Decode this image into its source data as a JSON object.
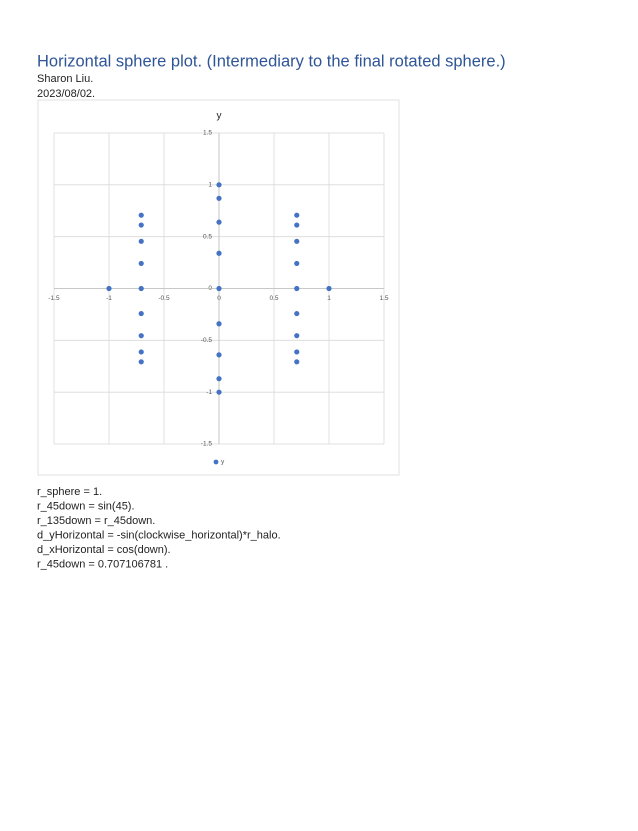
{
  "header": {
    "title": "Horizontal sphere plot. (Intermediary to the final rotated sphere.)",
    "author": "Sharon Liu.",
    "date": "2023/08/02."
  },
  "chart_data": {
    "type": "scatter",
    "y_axis_title": "y",
    "xlim": [
      -1.5,
      1.5
    ],
    "xticks": [
      -1.5,
      -1,
      -0.5,
      0,
      0.5,
      1,
      1.5
    ],
    "ylim": [
      -1.5,
      1.5
    ],
    "yticks": [
      -1.5,
      -1,
      -0.5,
      0,
      0.5,
      1,
      1.5
    ],
    "grid": true,
    "legend": "bottom",
    "series": [
      {
        "name": "y",
        "color": "#4472c4",
        "x": [
          0,
          0,
          0,
          0,
          0,
          0,
          0,
          0,
          0,
          -0.707,
          -0.707,
          -0.707,
          -0.707,
          -0.707,
          -0.707,
          -0.707,
          -0.707,
          -0.707,
          0.707,
          0.707,
          0.707,
          0.707,
          0.707,
          0.707,
          0.707,
          0.707,
          0.707,
          -1,
          1
        ],
        "values": [
          1,
          0.87,
          0.64,
          0.34,
          0,
          -0.34,
          -0.64,
          -0.87,
          -1,
          0.707,
          0.612,
          0.455,
          0.242,
          0,
          -0.242,
          -0.455,
          -0.612,
          -0.707,
          0.707,
          0.612,
          0.455,
          0.242,
          0,
          -0.242,
          -0.455,
          -0.612,
          -0.707,
          0,
          0
        ]
      }
    ]
  },
  "notes": [
    "r_sphere = 1.",
    "r_45down = sin(45).",
    "r_135down = r_45down.",
    "d_yHorizontal = -sin(clockwise_horizontal)*r_halo.",
    "d_xHorizontal = cos(down).",
    "r_45down = 0.707106781 ."
  ]
}
